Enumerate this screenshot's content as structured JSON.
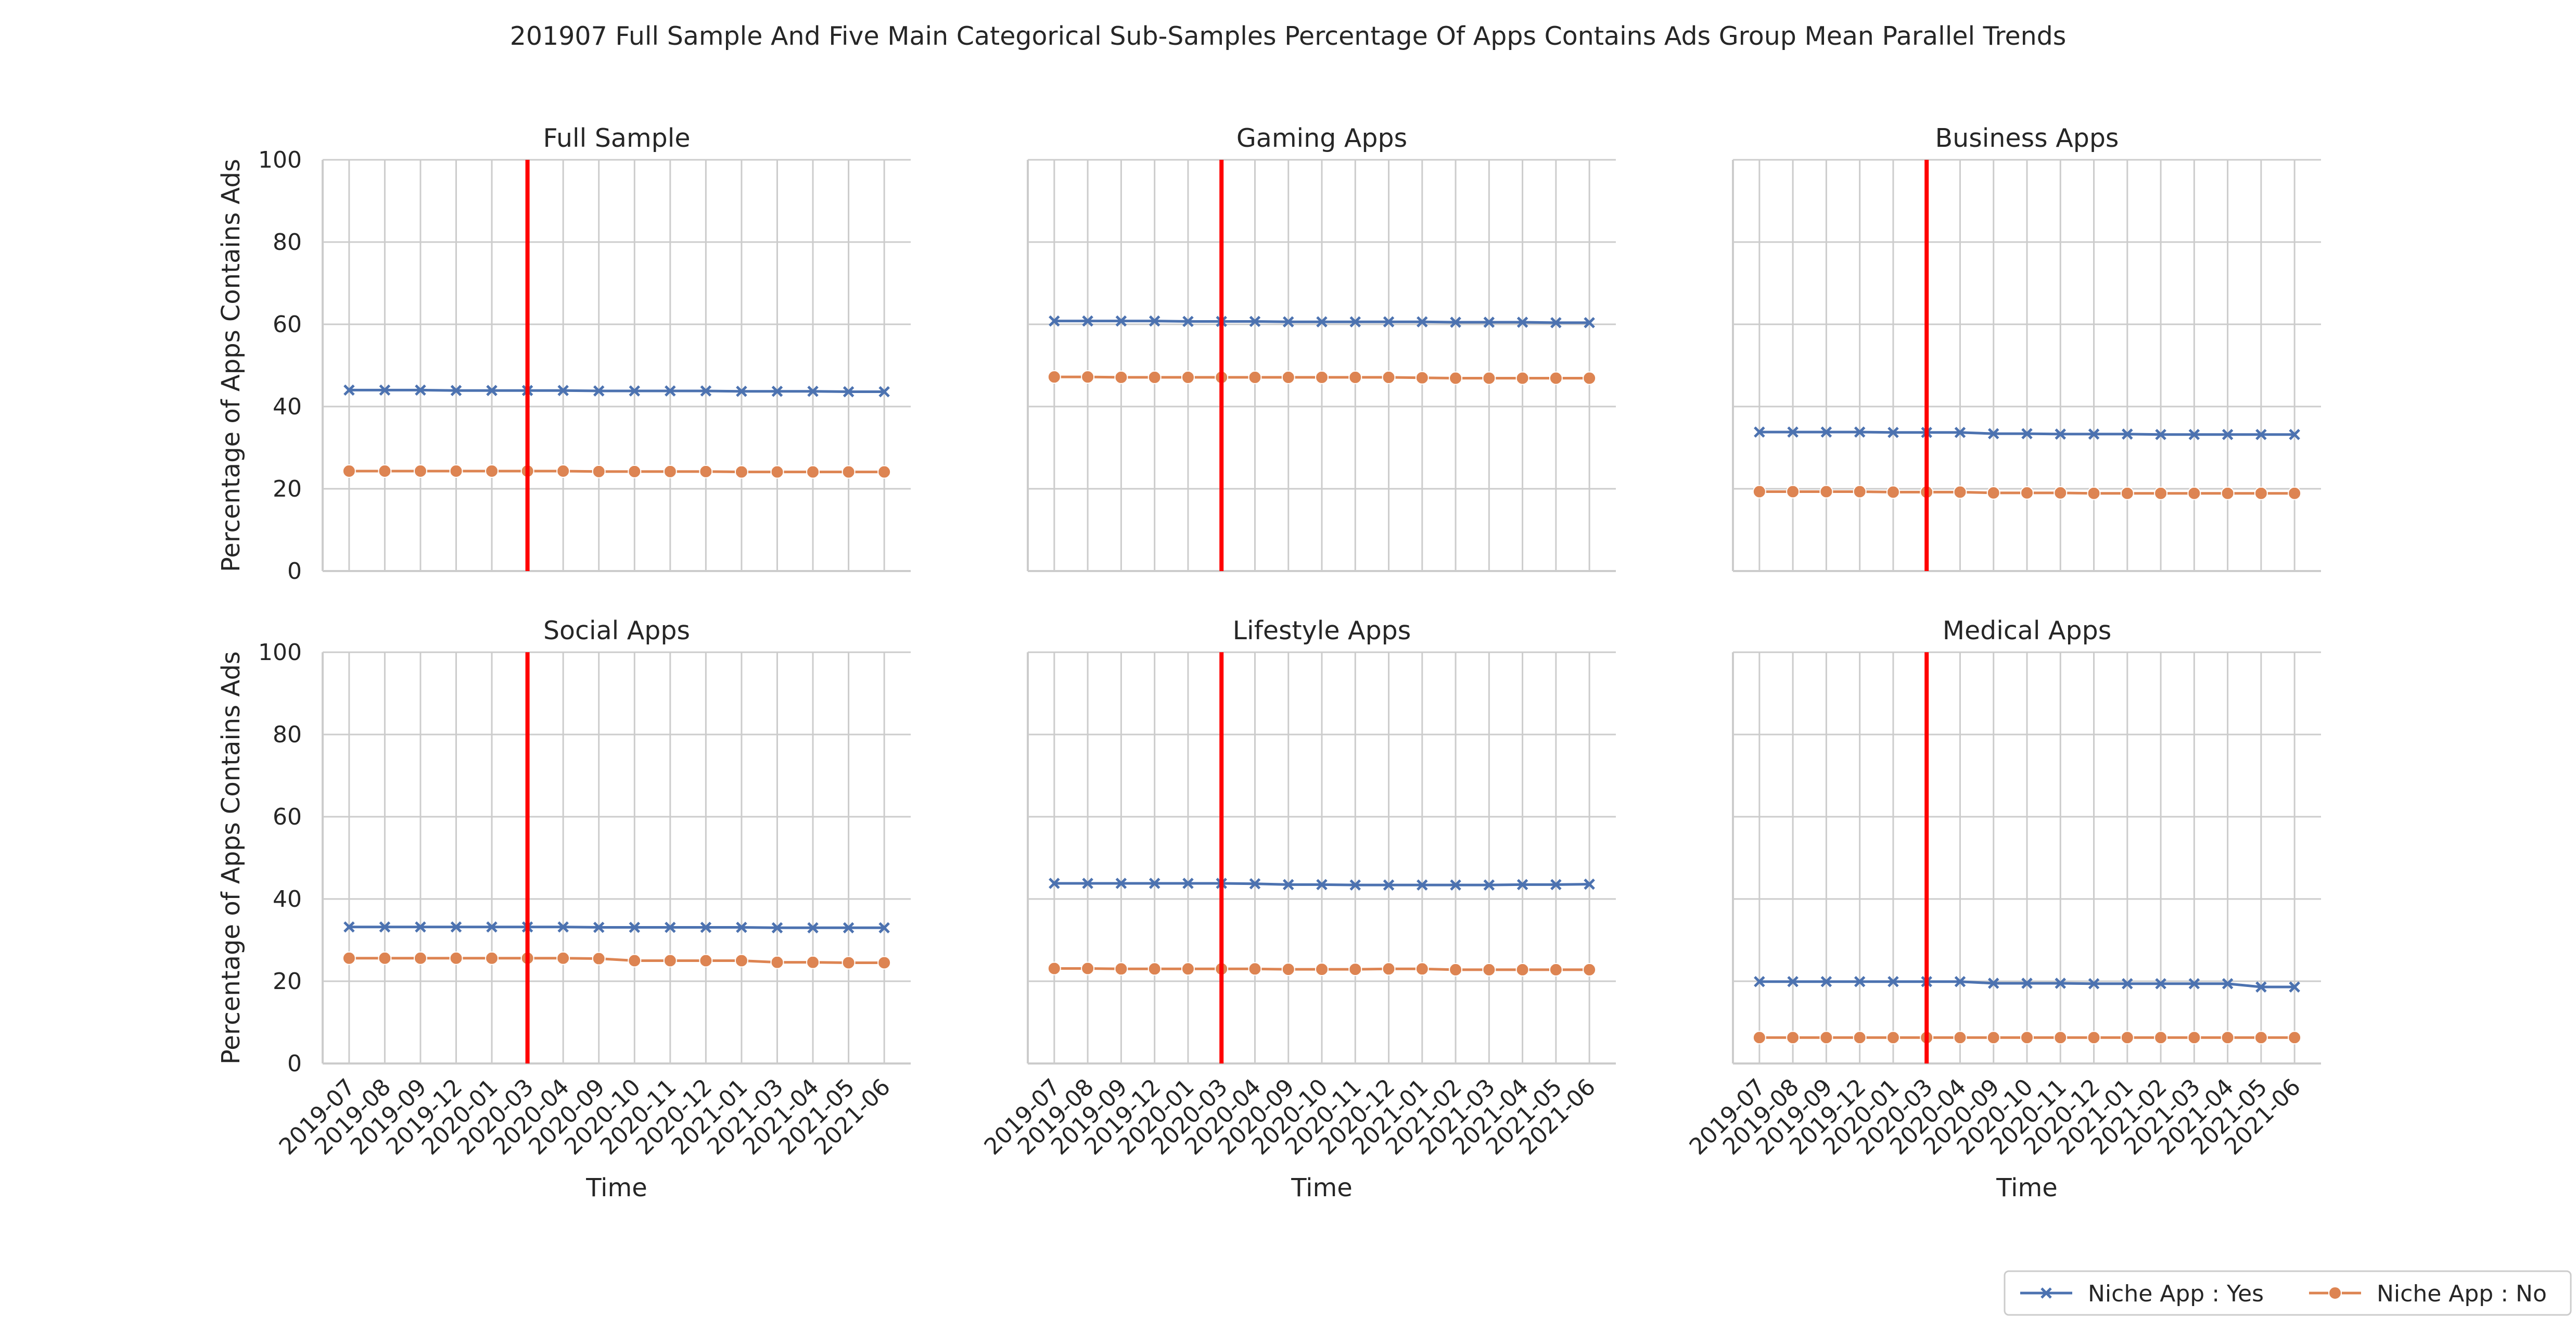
{
  "title": "201907 Full Sample And Five Main Categorical Sub-Samples Percentage Of Apps Contains Ads Group Mean Parallel Trends",
  "legend": {
    "placement": "bottom-right",
    "entries": [
      {
        "label": "Niche App : Yes",
        "color": "#4c72b0",
        "marker": "x"
      },
      {
        "label": "Niche App : No",
        "color": "#dd8452",
        "marker": "circle"
      }
    ]
  },
  "chart_data": [
    {
      "type": "line",
      "title": "Full Sample",
      "xlabel": "Time",
      "ylabel": "Percentage of Apps Contains Ads",
      "ylim": [
        0,
        100
      ],
      "yticks": [
        0,
        20,
        40,
        60,
        80,
        100
      ],
      "grid": true,
      "x": [
        "2019-07",
        "2019-08",
        "2019-09",
        "2019-12",
        "2020-01",
        "2020-03",
        "2020-04",
        "2020-09",
        "2020-10",
        "2020-11",
        "2020-12",
        "2021-01",
        "2021-03",
        "2021-04",
        "2021-05",
        "2021-06"
      ],
      "vline": {
        "x": "2020-03",
        "color": "#ff0000"
      },
      "series": [
        {
          "name": "Niche App : Yes",
          "color": "#4c72b0",
          "values": [
            44.0,
            44.0,
            44.0,
            43.9,
            43.9,
            43.9,
            43.9,
            43.8,
            43.8,
            43.8,
            43.8,
            43.7,
            43.7,
            43.7,
            43.6,
            43.6
          ]
        },
        {
          "name": "Niche App : No",
          "color": "#dd8452",
          "values": [
            24.3,
            24.3,
            24.3,
            24.3,
            24.3,
            24.3,
            24.3,
            24.2,
            24.2,
            24.2,
            24.2,
            24.1,
            24.1,
            24.1,
            24.1,
            24.1
          ]
        }
      ]
    },
    {
      "type": "line",
      "title": "Gaming Apps",
      "xlabel": "Time",
      "ylabel": "",
      "ylim": [
        0,
        100
      ],
      "yticks": [
        0,
        20,
        40,
        60,
        80,
        100
      ],
      "grid": true,
      "x": [
        "2019-07",
        "2019-08",
        "2019-09",
        "2019-12",
        "2020-01",
        "2020-03",
        "2020-04",
        "2020-09",
        "2020-10",
        "2020-11",
        "2020-12",
        "2021-01",
        "2021-02",
        "2021-03",
        "2021-04",
        "2021-05",
        "2021-06"
      ],
      "vline": {
        "x": "2020-03",
        "color": "#ff0000"
      },
      "series": [
        {
          "name": "Niche App : Yes",
          "color": "#4c72b0",
          "values": [
            60.8,
            60.8,
            60.8,
            60.8,
            60.7,
            60.7,
            60.7,
            60.6,
            60.6,
            60.6,
            60.6,
            60.6,
            60.5,
            60.5,
            60.5,
            60.4,
            60.4
          ]
        },
        {
          "name": "Niche App : No",
          "color": "#dd8452",
          "values": [
            47.2,
            47.2,
            47.1,
            47.1,
            47.1,
            47.1,
            47.1,
            47.1,
            47.1,
            47.1,
            47.1,
            47.0,
            46.9,
            46.9,
            46.9,
            46.9,
            46.9
          ]
        }
      ]
    },
    {
      "type": "line",
      "title": "Business Apps",
      "xlabel": "Time",
      "ylabel": "",
      "ylim": [
        0,
        100
      ],
      "yticks": [
        0,
        20,
        40,
        60,
        80,
        100
      ],
      "grid": true,
      "x": [
        "2019-07",
        "2019-08",
        "2019-09",
        "2019-12",
        "2020-01",
        "2020-03",
        "2020-04",
        "2020-09",
        "2020-10",
        "2020-11",
        "2020-12",
        "2021-01",
        "2021-02",
        "2021-03",
        "2021-04",
        "2021-05",
        "2021-06"
      ],
      "vline": {
        "x": "2020-03",
        "color": "#ff0000"
      },
      "series": [
        {
          "name": "Niche App : Yes",
          "color": "#4c72b0",
          "values": [
            33.8,
            33.8,
            33.8,
            33.8,
            33.7,
            33.7,
            33.7,
            33.4,
            33.4,
            33.3,
            33.3,
            33.3,
            33.2,
            33.2,
            33.2,
            33.2,
            33.2
          ]
        },
        {
          "name": "Niche App : No",
          "color": "#dd8452",
          "values": [
            19.3,
            19.3,
            19.3,
            19.3,
            19.2,
            19.2,
            19.2,
            19.0,
            19.0,
            19.0,
            18.9,
            18.9,
            18.9,
            18.9,
            18.9,
            18.9,
            18.9
          ]
        }
      ]
    },
    {
      "type": "line",
      "title": "Social Apps",
      "xlabel": "Time",
      "ylabel": "Percentage of Apps Contains Ads",
      "ylim": [
        0,
        100
      ],
      "yticks": [
        0,
        20,
        40,
        60,
        80,
        100
      ],
      "grid": true,
      "x": [
        "2019-07",
        "2019-08",
        "2019-09",
        "2019-12",
        "2020-01",
        "2020-03",
        "2020-04",
        "2020-09",
        "2020-10",
        "2020-11",
        "2020-12",
        "2021-01",
        "2021-03",
        "2021-04",
        "2021-05",
        "2021-06"
      ],
      "vline": {
        "x": "2020-03",
        "color": "#ff0000"
      },
      "series": [
        {
          "name": "Niche App : Yes",
          "color": "#4c72b0",
          "values": [
            33.2,
            33.2,
            33.2,
            33.2,
            33.2,
            33.2,
            33.2,
            33.1,
            33.1,
            33.1,
            33.1,
            33.1,
            33.0,
            33.0,
            33.0,
            33.0
          ]
        },
        {
          "name": "Niche App : No",
          "color": "#dd8452",
          "values": [
            25.6,
            25.6,
            25.6,
            25.6,
            25.6,
            25.6,
            25.6,
            25.5,
            25.0,
            25.0,
            25.0,
            25.0,
            24.6,
            24.6,
            24.5,
            24.5
          ]
        }
      ]
    },
    {
      "type": "line",
      "title": "Lifestyle Apps",
      "xlabel": "Time",
      "ylabel": "",
      "ylim": [
        0,
        100
      ],
      "yticks": [
        0,
        20,
        40,
        60,
        80,
        100
      ],
      "grid": true,
      "x": [
        "2019-07",
        "2019-08",
        "2019-09",
        "2019-12",
        "2020-01",
        "2020-03",
        "2020-04",
        "2020-09",
        "2020-10",
        "2020-11",
        "2020-12",
        "2021-01",
        "2021-02",
        "2021-03",
        "2021-04",
        "2021-05",
        "2021-06"
      ],
      "vline": {
        "x": "2020-03",
        "color": "#ff0000"
      },
      "series": [
        {
          "name": "Niche App : Yes",
          "color": "#4c72b0",
          "values": [
            43.8,
            43.8,
            43.8,
            43.8,
            43.8,
            43.8,
            43.7,
            43.5,
            43.5,
            43.4,
            43.4,
            43.4,
            43.4,
            43.4,
            43.5,
            43.5,
            43.6
          ]
        },
        {
          "name": "Niche App : No",
          "color": "#dd8452",
          "values": [
            23.1,
            23.1,
            23.0,
            23.0,
            23.0,
            23.0,
            23.0,
            22.9,
            22.9,
            22.9,
            23.0,
            23.0,
            22.8,
            22.8,
            22.8,
            22.8,
            22.8
          ]
        }
      ]
    },
    {
      "type": "line",
      "title": "Medical Apps",
      "xlabel": "Time",
      "ylabel": "",
      "ylim": [
        0,
        100
      ],
      "yticks": [
        0,
        20,
        40,
        60,
        80,
        100
      ],
      "grid": true,
      "x": [
        "2019-07",
        "2019-08",
        "2019-09",
        "2019-12",
        "2020-01",
        "2020-03",
        "2020-04",
        "2020-09",
        "2020-10",
        "2020-11",
        "2020-12",
        "2021-01",
        "2021-02",
        "2021-03",
        "2021-04",
        "2021-05",
        "2021-06"
      ],
      "vline": {
        "x": "2020-03",
        "color": "#ff0000"
      },
      "series": [
        {
          "name": "Niche App : Yes",
          "color": "#4c72b0",
          "values": [
            19.9,
            19.9,
            19.9,
            19.9,
            19.9,
            19.9,
            19.9,
            19.5,
            19.5,
            19.5,
            19.4,
            19.4,
            19.4,
            19.4,
            19.4,
            18.6,
            18.6
          ]
        },
        {
          "name": "Niche App : No",
          "color": "#dd8452",
          "values": [
            6.3,
            6.3,
            6.3,
            6.3,
            6.3,
            6.3,
            6.3,
            6.3,
            6.3,
            6.3,
            6.3,
            6.3,
            6.3,
            6.3,
            6.3,
            6.3,
            6.3
          ]
        }
      ]
    }
  ]
}
